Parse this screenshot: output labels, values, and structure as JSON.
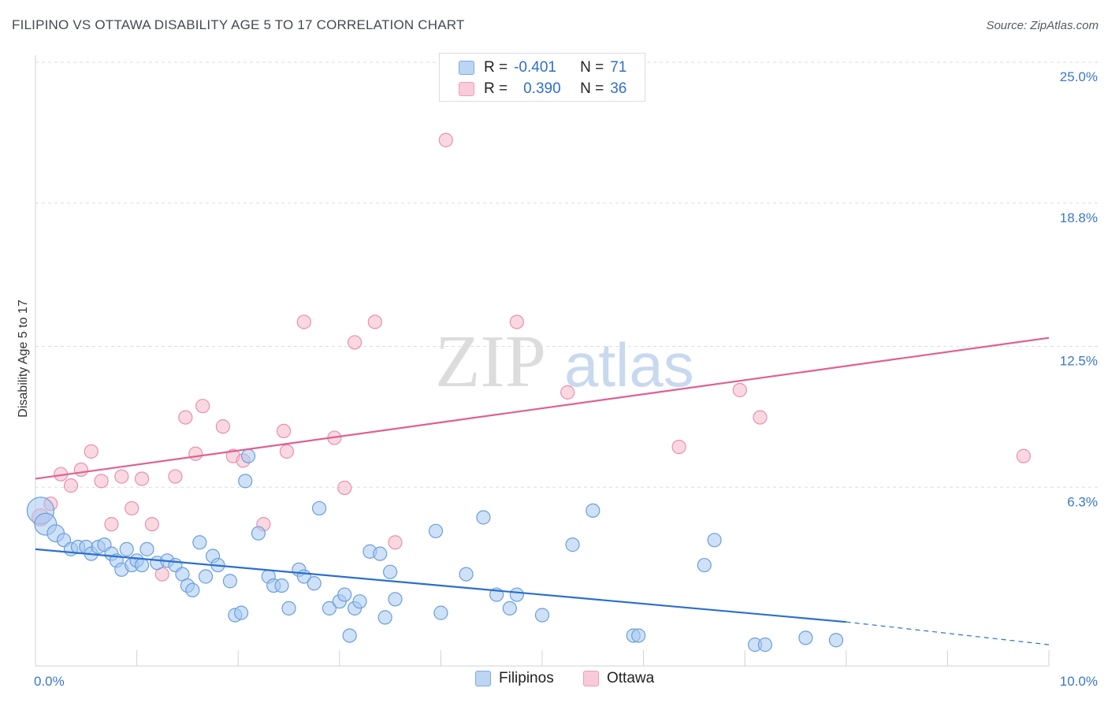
{
  "header": {
    "title": "FILIPINO VS OTTAWA DISABILITY AGE 5 TO 17 CORRELATION CHART",
    "source": "Source: ZipAtlas.com"
  },
  "watermark": {
    "part1": "ZIP",
    "part2": "atlas"
  },
  "legend": {
    "rows": [
      {
        "r_label": "R =",
        "r_value": "-0.401",
        "n_label": "N =",
        "n_value": "71",
        "color": "#a8c8f0"
      },
      {
        "r_label": "R =",
        "r_value": "0.390",
        "n_label": "N =",
        "n_value": "36",
        "color": "#f6b8ca"
      }
    ]
  },
  "bottom_legend": {
    "series1": "Filipinos",
    "series2": "Ottawa"
  },
  "colors": {
    "blue_fill": "#a8c8f0",
    "blue_stroke": "#6a9fdc",
    "blue_line": "#2a6fd0",
    "pink_fill": "#f6b8ca",
    "pink_stroke": "#e890ad",
    "pink_line": "#e06090",
    "tick_color": "#3a78c9",
    "grid_color": "#d9dde3"
  },
  "chart_data": {
    "type": "scatter",
    "title": "FILIPINO VS OTTAWA DISABILITY AGE 5 TO 17 CORRELATION CHART",
    "xlabel": "",
    "ylabel": "Disability Age 5 to 17",
    "xlim": [
      0,
      10
    ],
    "ylim": [
      0,
      25.5
    ],
    "x_tick_labels": [
      "0.0%",
      "10.0%"
    ],
    "y_ticks": [
      6.3,
      12.5,
      18.8,
      25.0
    ],
    "y_tick_labels": [
      "6.3%",
      "12.5%",
      "18.8%",
      "25.0%"
    ],
    "grid": "horizontal dashed",
    "legend_position": "top-center",
    "series": [
      {
        "name": "Filipinos",
        "color": "#a8c8f0",
        "trend": {
          "x": [
            0.0,
            8.0
          ],
          "y": [
            4.2,
            1.0
          ],
          "dashed_extension": {
            "x": [
              8.0,
              10.0
            ],
            "y": [
              1.0,
              0.0
            ]
          }
        },
        "points": [
          [
            0.05,
            5.9,
            22
          ],
          [
            0.1,
            5.3,
            18
          ],
          [
            0.2,
            4.9,
            14
          ],
          [
            0.28,
            4.6,
            11
          ],
          [
            0.35,
            4.2,
            11
          ],
          [
            0.42,
            4.3,
            11
          ],
          [
            0.5,
            4.3,
            11
          ],
          [
            0.55,
            4.0,
            11
          ],
          [
            0.62,
            4.3,
            11
          ],
          [
            0.68,
            4.4,
            11
          ],
          [
            0.75,
            4.0,
            11
          ],
          [
            0.8,
            3.7,
            11
          ],
          [
            0.85,
            3.3,
            11
          ],
          [
            0.9,
            4.2,
            11
          ],
          [
            0.95,
            3.5,
            11
          ],
          [
            1.0,
            3.7,
            11
          ],
          [
            1.05,
            3.5,
            11
          ],
          [
            1.1,
            4.2,
            11
          ],
          [
            1.2,
            3.6,
            11
          ],
          [
            1.3,
            3.7,
            11
          ],
          [
            1.38,
            3.5,
            11
          ],
          [
            1.45,
            3.1,
            11
          ],
          [
            1.5,
            2.6,
            11
          ],
          [
            1.55,
            2.4,
            11
          ],
          [
            1.62,
            4.5,
            11
          ],
          [
            1.68,
            3.0,
            11
          ],
          [
            1.75,
            3.9,
            11
          ],
          [
            1.8,
            3.5,
            11
          ],
          [
            1.92,
            2.8,
            11
          ],
          [
            1.97,
            1.3,
            11
          ],
          [
            2.03,
            1.4,
            11
          ],
          [
            2.07,
            7.2,
            11
          ],
          [
            2.1,
            8.3,
            11
          ],
          [
            2.2,
            4.9,
            11
          ],
          [
            2.3,
            3.0,
            11
          ],
          [
            2.35,
            2.6,
            11
          ],
          [
            2.43,
            2.6,
            11
          ],
          [
            2.5,
            1.6,
            11
          ],
          [
            2.6,
            3.3,
            11
          ],
          [
            2.65,
            3.0,
            11
          ],
          [
            2.75,
            2.7,
            11
          ],
          [
            2.8,
            6.0,
            11
          ],
          [
            2.9,
            1.6,
            11
          ],
          [
            3.0,
            1.9,
            11
          ],
          [
            3.05,
            2.2,
            11
          ],
          [
            3.1,
            0.4,
            11
          ],
          [
            3.15,
            1.6,
            11
          ],
          [
            3.2,
            1.9,
            11
          ],
          [
            3.3,
            4.1,
            11
          ],
          [
            3.4,
            4.0,
            11
          ],
          [
            3.45,
            1.2,
            11
          ],
          [
            3.5,
            3.2,
            11
          ],
          [
            3.55,
            2.0,
            11
          ],
          [
            3.95,
            5.0,
            11
          ],
          [
            4.0,
            1.4,
            11
          ],
          [
            4.25,
            3.1,
            11
          ],
          [
            4.42,
            5.6,
            11
          ],
          [
            4.55,
            2.2,
            11
          ],
          [
            4.68,
            1.6,
            11
          ],
          [
            4.75,
            2.2,
            11
          ],
          [
            5.0,
            1.3,
            11
          ],
          [
            5.3,
            4.4,
            11
          ],
          [
            5.5,
            5.9,
            11
          ],
          [
            5.9,
            0.4,
            11
          ],
          [
            5.95,
            0.4,
            11
          ],
          [
            6.6,
            3.5,
            11
          ],
          [
            6.7,
            4.6,
            11
          ],
          [
            7.1,
            0.0,
            11
          ],
          [
            7.2,
            0.0,
            11
          ],
          [
            7.6,
            0.3,
            11
          ],
          [
            7.9,
            0.2,
            11
          ]
        ]
      },
      {
        "name": "Ottawa",
        "color": "#f6b8ca",
        "trend": {
          "x": [
            0.0,
            10.0
          ],
          "y": [
            7.3,
            13.5
          ]
        },
        "points": [
          [
            0.05,
            5.6,
            14
          ],
          [
            0.15,
            6.2,
            11
          ],
          [
            0.25,
            7.5,
            11
          ],
          [
            0.35,
            7.0,
            11
          ],
          [
            0.45,
            7.7,
            11
          ],
          [
            0.55,
            8.5,
            11
          ],
          [
            0.65,
            7.2,
            11
          ],
          [
            0.75,
            5.3,
            11
          ],
          [
            0.85,
            7.4,
            11
          ],
          [
            0.95,
            6.0,
            11
          ],
          [
            1.05,
            7.3,
            11
          ],
          [
            1.15,
            5.3,
            11
          ],
          [
            1.25,
            3.1,
            11
          ],
          [
            1.38,
            7.4,
            11
          ],
          [
            1.48,
            10.0,
            11
          ],
          [
            1.58,
            8.4,
            11
          ],
          [
            1.65,
            10.5,
            11
          ],
          [
            1.85,
            9.6,
            11
          ],
          [
            1.95,
            8.3,
            11
          ],
          [
            2.05,
            8.1,
            11
          ],
          [
            2.25,
            5.3,
            11
          ],
          [
            2.45,
            9.4,
            11
          ],
          [
            2.48,
            8.5,
            11
          ],
          [
            2.65,
            14.2,
            11
          ],
          [
            2.95,
            9.1,
            11
          ],
          [
            3.05,
            6.9,
            11
          ],
          [
            3.15,
            13.3,
            11
          ],
          [
            3.35,
            14.2,
            11
          ],
          [
            3.55,
            4.5,
            11
          ],
          [
            4.05,
            22.2,
            11
          ],
          [
            4.75,
            14.2,
            11
          ],
          [
            5.25,
            11.1,
            11
          ],
          [
            6.35,
            8.7,
            11
          ],
          [
            6.95,
            11.2,
            11
          ],
          [
            7.15,
            10.0,
            11
          ],
          [
            9.75,
            8.3,
            11
          ]
        ]
      }
    ]
  }
}
